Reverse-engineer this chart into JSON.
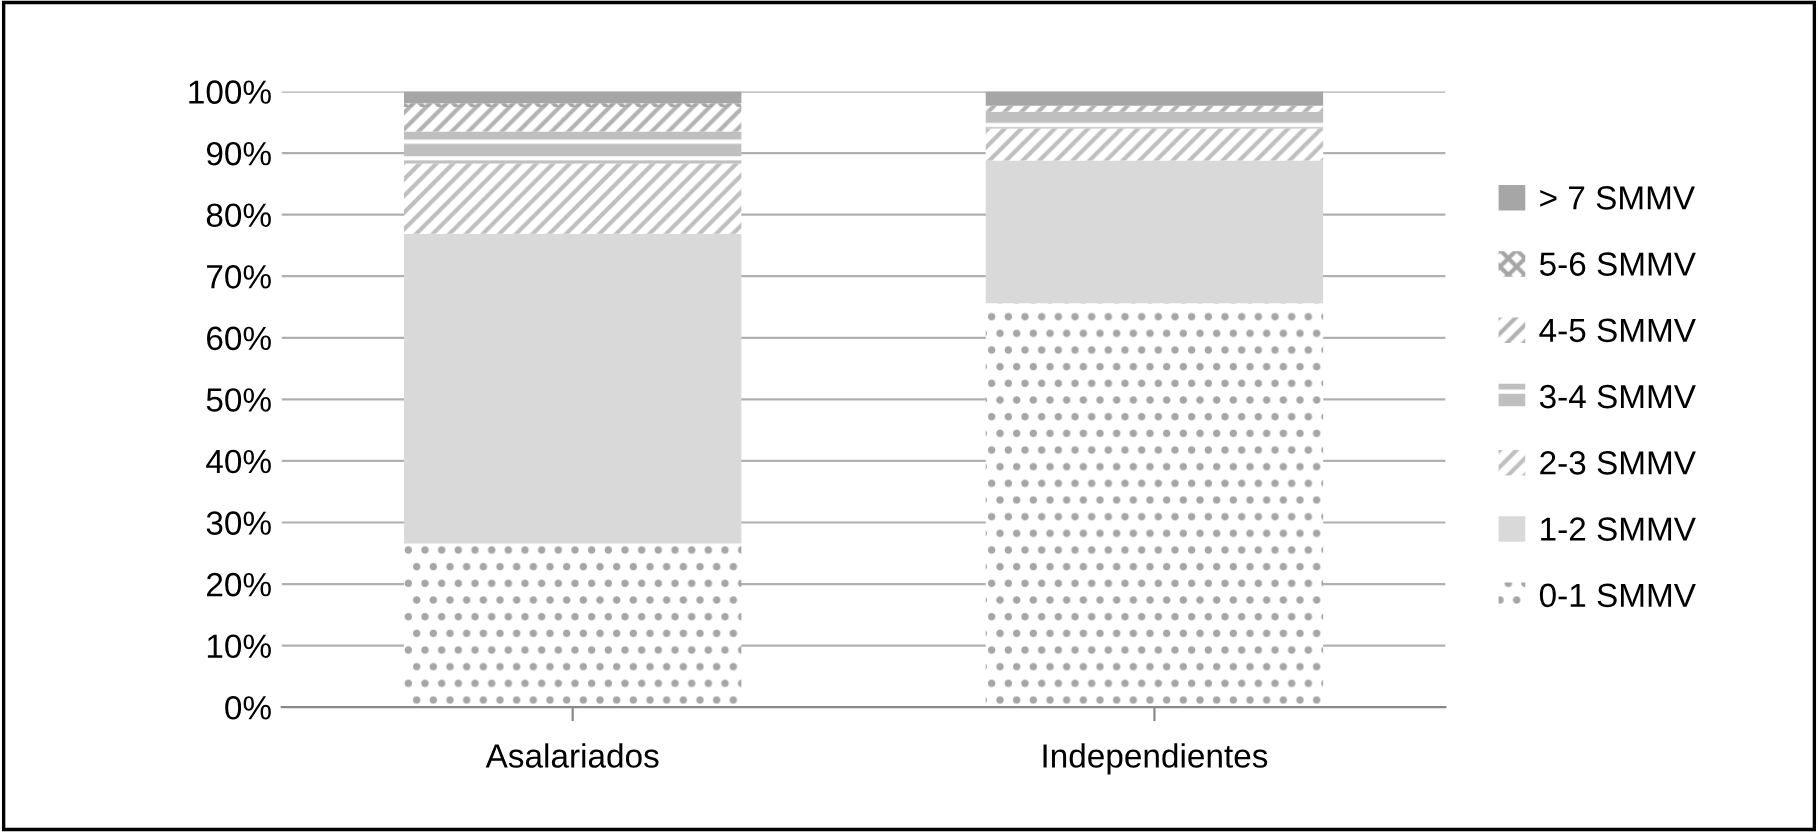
{
  "chart_data": {
    "type": "bar",
    "stacked": true,
    "categories": [
      "Asalariados",
      "Independientes"
    ],
    "series": [
      {
        "name": "0-1 SMMV",
        "color": "#a6a6a6",
        "values": [
          26.6,
          65.6
        ]
      },
      {
        "name": "1-2 SMMV",
        "color": "#d9d9d9",
        "values": [
          50.3,
          23.2
        ]
      },
      {
        "name": "2-3 SMMV",
        "color": "#bfbfbf",
        "values": [
          11.4,
          5.2
        ]
      },
      {
        "name": "3-4 SMMV",
        "color": "#bfbfbf",
        "values": [
          5.2,
          2.7
        ]
      },
      {
        "name": "4-5 SMMV",
        "color": "#b3b3b3",
        "values": [
          4.0,
          1.0
        ]
      },
      {
        "name": "5-6 SMMV",
        "color": "#a6a6a6",
        "values": [
          0.6,
          0.0
        ]
      },
      {
        "name": "> 7 SMMV",
        "color": "#a6a6a6",
        "values": [
          1.9,
          2.3
        ]
      }
    ],
    "ylim": [
      0,
      100
    ],
    "yticks": [
      {
        "value": 0,
        "label": "0%"
      },
      {
        "value": 10,
        "label": "10%"
      },
      {
        "value": 20,
        "label": "20%"
      },
      {
        "value": 30,
        "label": "30%"
      },
      {
        "value": 40,
        "label": "40%"
      },
      {
        "value": 50,
        "label": "50%"
      },
      {
        "value": 60,
        "label": "60%"
      },
      {
        "value": 70,
        "label": "70%"
      },
      {
        "value": 80,
        "label": "80%"
      },
      {
        "value": 90,
        "label": "90%"
      },
      {
        "value": 100,
        "label": "100%"
      }
    ],
    "grid": "y",
    "legend": "right"
  }
}
